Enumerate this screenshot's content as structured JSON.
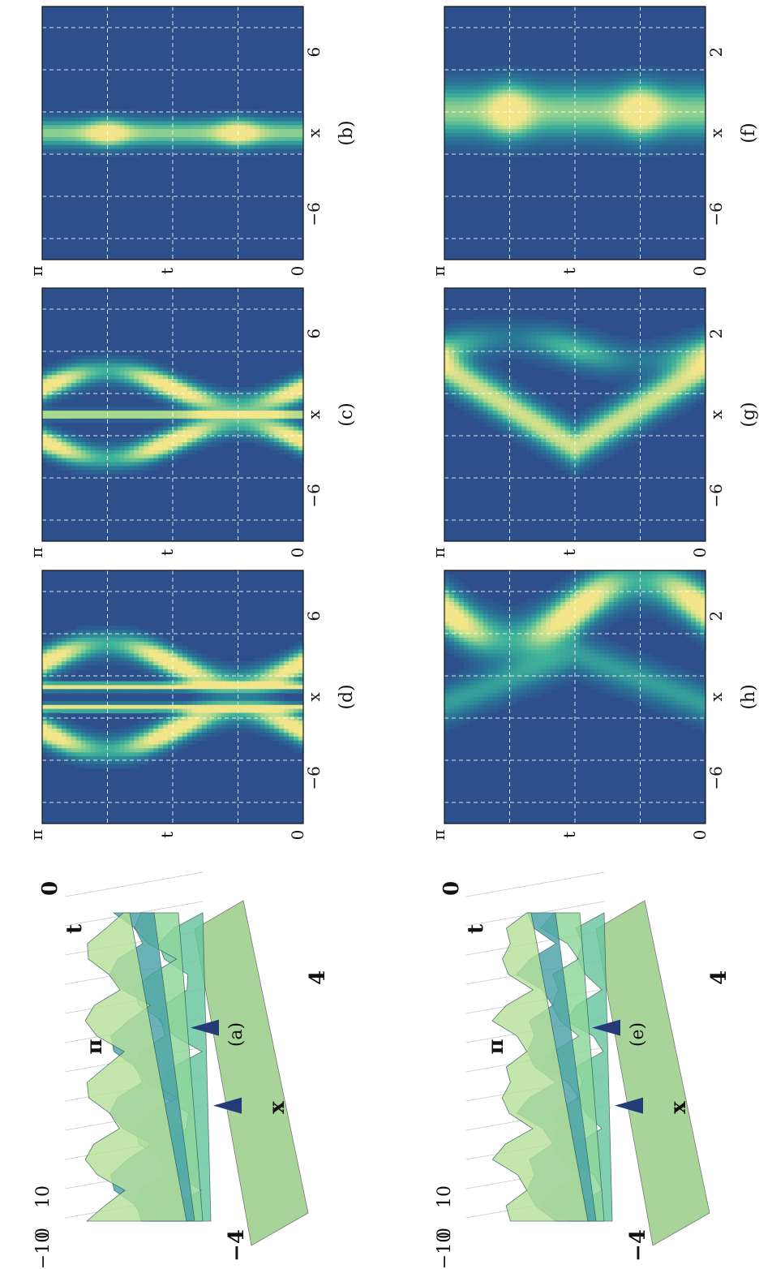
{
  "figure": {
    "orientation": "rotated-90-ccw",
    "colormap": [
      "#2d4f8c",
      "#2a7d99",
      "#3fb39a",
      "#a8d88c",
      "#f2e58a"
    ],
    "grid_color": "#ffffff"
  },
  "chart_data": [
    {
      "id": "a",
      "type": "surface3d",
      "caption": "(a)",
      "axis_labels": {
        "t": "t",
        "x": "x"
      },
      "t_ticks": [
        "0",
        "π"
      ],
      "x_ticks": [
        "−4",
        "4"
      ],
      "z_ticks": [
        "10",
        "0",
        "−10"
      ]
    },
    {
      "id": "b",
      "type": "heatmap",
      "caption": "(b)",
      "xlabel": "x",
      "ylabel": "t",
      "x_ticks": [
        "−6",
        "6"
      ],
      "t_ticks": [
        "0",
        "t",
        "π"
      ],
      "xlim": [
        -12,
        12
      ],
      "tlim": [
        0,
        3.1416
      ],
      "bands": [
        {
          "kind": "vertical",
          "x0": 0,
          "width": 1.2,
          "amp": 0.3,
          "peaks": [
            0.785,
            2.356
          ]
        }
      ]
    },
    {
      "id": "c",
      "type": "heatmap",
      "caption": "(c)",
      "xlabel": "x",
      "ylabel": "t",
      "x_ticks": [
        "−6",
        "6"
      ],
      "t_ticks": [
        "0",
        "t",
        "π"
      ],
      "xlim": [
        -12,
        12
      ],
      "tlim": [
        0,
        3.1416
      ],
      "bands": [
        {
          "kind": "wave",
          "x0": -2.5,
          "amp": 1.6,
          "width": 1.1
        },
        {
          "kind": "wave",
          "x0": 2.5,
          "amp": -1.6,
          "width": 1.1
        },
        {
          "kind": "vertical",
          "x0": 0,
          "width": 0.35,
          "amp": 0,
          "peaks": []
        }
      ]
    },
    {
      "id": "d",
      "type": "heatmap",
      "caption": "(d)",
      "xlabel": "x",
      "ylabel": "t",
      "x_ticks": [
        "−6",
        "6"
      ],
      "t_ticks": [
        "0",
        "t",
        "π"
      ],
      "xlim": [
        -12,
        12
      ],
      "tlim": [
        0,
        3.1416
      ],
      "bands": [
        {
          "kind": "wave",
          "x0": -3.2,
          "amp": 1.8,
          "width": 1.2
        },
        {
          "kind": "wave",
          "x0": 3.2,
          "amp": -1.8,
          "width": 1.2
        },
        {
          "kind": "vertical",
          "x0": -1,
          "width": 0.35,
          "amp": 0,
          "peaks": []
        },
        {
          "kind": "vertical",
          "x0": 1,
          "width": 0.35,
          "amp": 0,
          "peaks": []
        }
      ]
    },
    {
      "id": "e",
      "type": "surface3d",
      "caption": "(e)",
      "axis_labels": {
        "t": "t",
        "x": "x"
      },
      "t_ticks": [
        "0",
        "π"
      ],
      "x_ticks": [
        "−4",
        "4"
      ],
      "z_ticks": [
        "10",
        "0",
        "−10"
      ]
    },
    {
      "id": "f",
      "type": "heatmap",
      "caption": "(f)",
      "xlabel": "x",
      "ylabel": "t",
      "x_ticks": [
        "−6",
        "2"
      ],
      "t_ticks": [
        "0",
        "t",
        "π"
      ],
      "xlim": [
        -10,
        4
      ],
      "tlim": [
        0,
        3.1416
      ],
      "bands": [
        {
          "kind": "vertical",
          "x0": -1.8,
          "width": 1.4,
          "amp": 0.4,
          "peaks": [
            0.785,
            2.356
          ]
        }
      ]
    },
    {
      "id": "g",
      "type": "heatmap",
      "caption": "(g)",
      "xlabel": "x",
      "ylabel": "t",
      "x_ticks": [
        "−6",
        "2"
      ],
      "t_ticks": [
        "0",
        "t",
        "π"
      ],
      "xlim": [
        -10,
        4
      ],
      "tlim": [
        0,
        3.1416
      ],
      "bands": [
        {
          "kind": "zigzag",
          "x0": -2.6,
          "amp": 2.2,
          "width": 1.0
        },
        {
          "kind": "wave",
          "x0": 0.6,
          "amp": -0.6,
          "width": 0.9,
          "dim": true
        }
      ]
    },
    {
      "id": "h",
      "type": "heatmap",
      "caption": "(h)",
      "xlabel": "x",
      "ylabel": "t",
      "x_ticks": [
        "−6",
        "2"
      ],
      "t_ticks": [
        "0",
        "t",
        "π"
      ],
      "xlim": [
        -10,
        4
      ],
      "tlim": [
        0,
        3.1416
      ],
      "bands": [
        {
          "kind": "wave",
          "x0": 1.8,
          "amp": 1.6,
          "width": 1.2
        },
        {
          "kind": "zigzag",
          "x0": -2.0,
          "amp": -1.4,
          "width": 1.0,
          "dim": true
        }
      ]
    }
  ]
}
